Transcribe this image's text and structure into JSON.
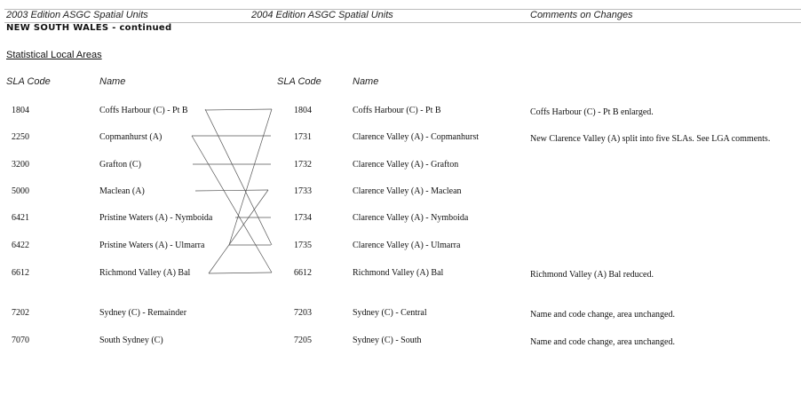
{
  "header": {
    "col2003": "2003 Edition ASGC Spatial Units",
    "col2004": "2004 Edition ASGC Spatial Units",
    "comments": "Comments on Changes"
  },
  "state": "NEW SOUTH WALES - continued",
  "section": "Statistical Local Areas",
  "columns": {
    "code2003": "SLA Code",
    "name2003": "Name",
    "code2004": "SLA Code",
    "name2004": "Name"
  },
  "rows": [
    {
      "c1": "1804",
      "n1": "Coffs Harbour (C) - Pt B",
      "c2": "1804",
      "n2": "Coffs Harbour (C) - Pt B",
      "comment": "Coffs Harbour (C) - Pt B enlarged."
    },
    {
      "c1": "2250",
      "n1": "Copmanhurst (A)",
      "c2": "1731",
      "n2": "Clarence Valley (A) - Copmanhurst",
      "comment": "New Clarence Valley (A) split into five SLAs. See LGA comments."
    },
    {
      "c1": "3200",
      "n1": "Grafton (C)",
      "c2": "1732",
      "n2": "Clarence Valley (A) - Grafton",
      "comment": ""
    },
    {
      "c1": "5000",
      "n1": "Maclean (A)",
      "c2": "1733",
      "n2": "Clarence Valley (A) - Maclean",
      "comment": ""
    },
    {
      "c1": "6421",
      "n1": "Pristine Waters (A) - Nymboida",
      "c2": "1734",
      "n2": "Clarence Valley (A) - Nymboida",
      "comment": ""
    },
    {
      "c1": "6422",
      "n1": "Pristine Waters (A) - Ulmarra",
      "c2": "1735",
      "n2": "Clarence Valley (A) - Ulmarra",
      "comment": ""
    },
    {
      "c1": "6612",
      "n1": "Richmond Valley (A) Bal",
      "c2": "6612",
      "n2": "Richmond Valley (A) Bal",
      "comment": "Richmond Valley (A) Bal reduced."
    },
    {
      "c1": "7202",
      "n1": "Sydney (C) - Remainder",
      "c2": "7203",
      "n2": "Sydney (C) - Central",
      "comment": "Name and code change, area unchanged."
    },
    {
      "c1": "7070",
      "n1": "South Sydney (C)",
      "c2": "7205",
      "n2": "Sydney (C) - South",
      "comment": "Name and code change, area unchanged."
    }
  ]
}
